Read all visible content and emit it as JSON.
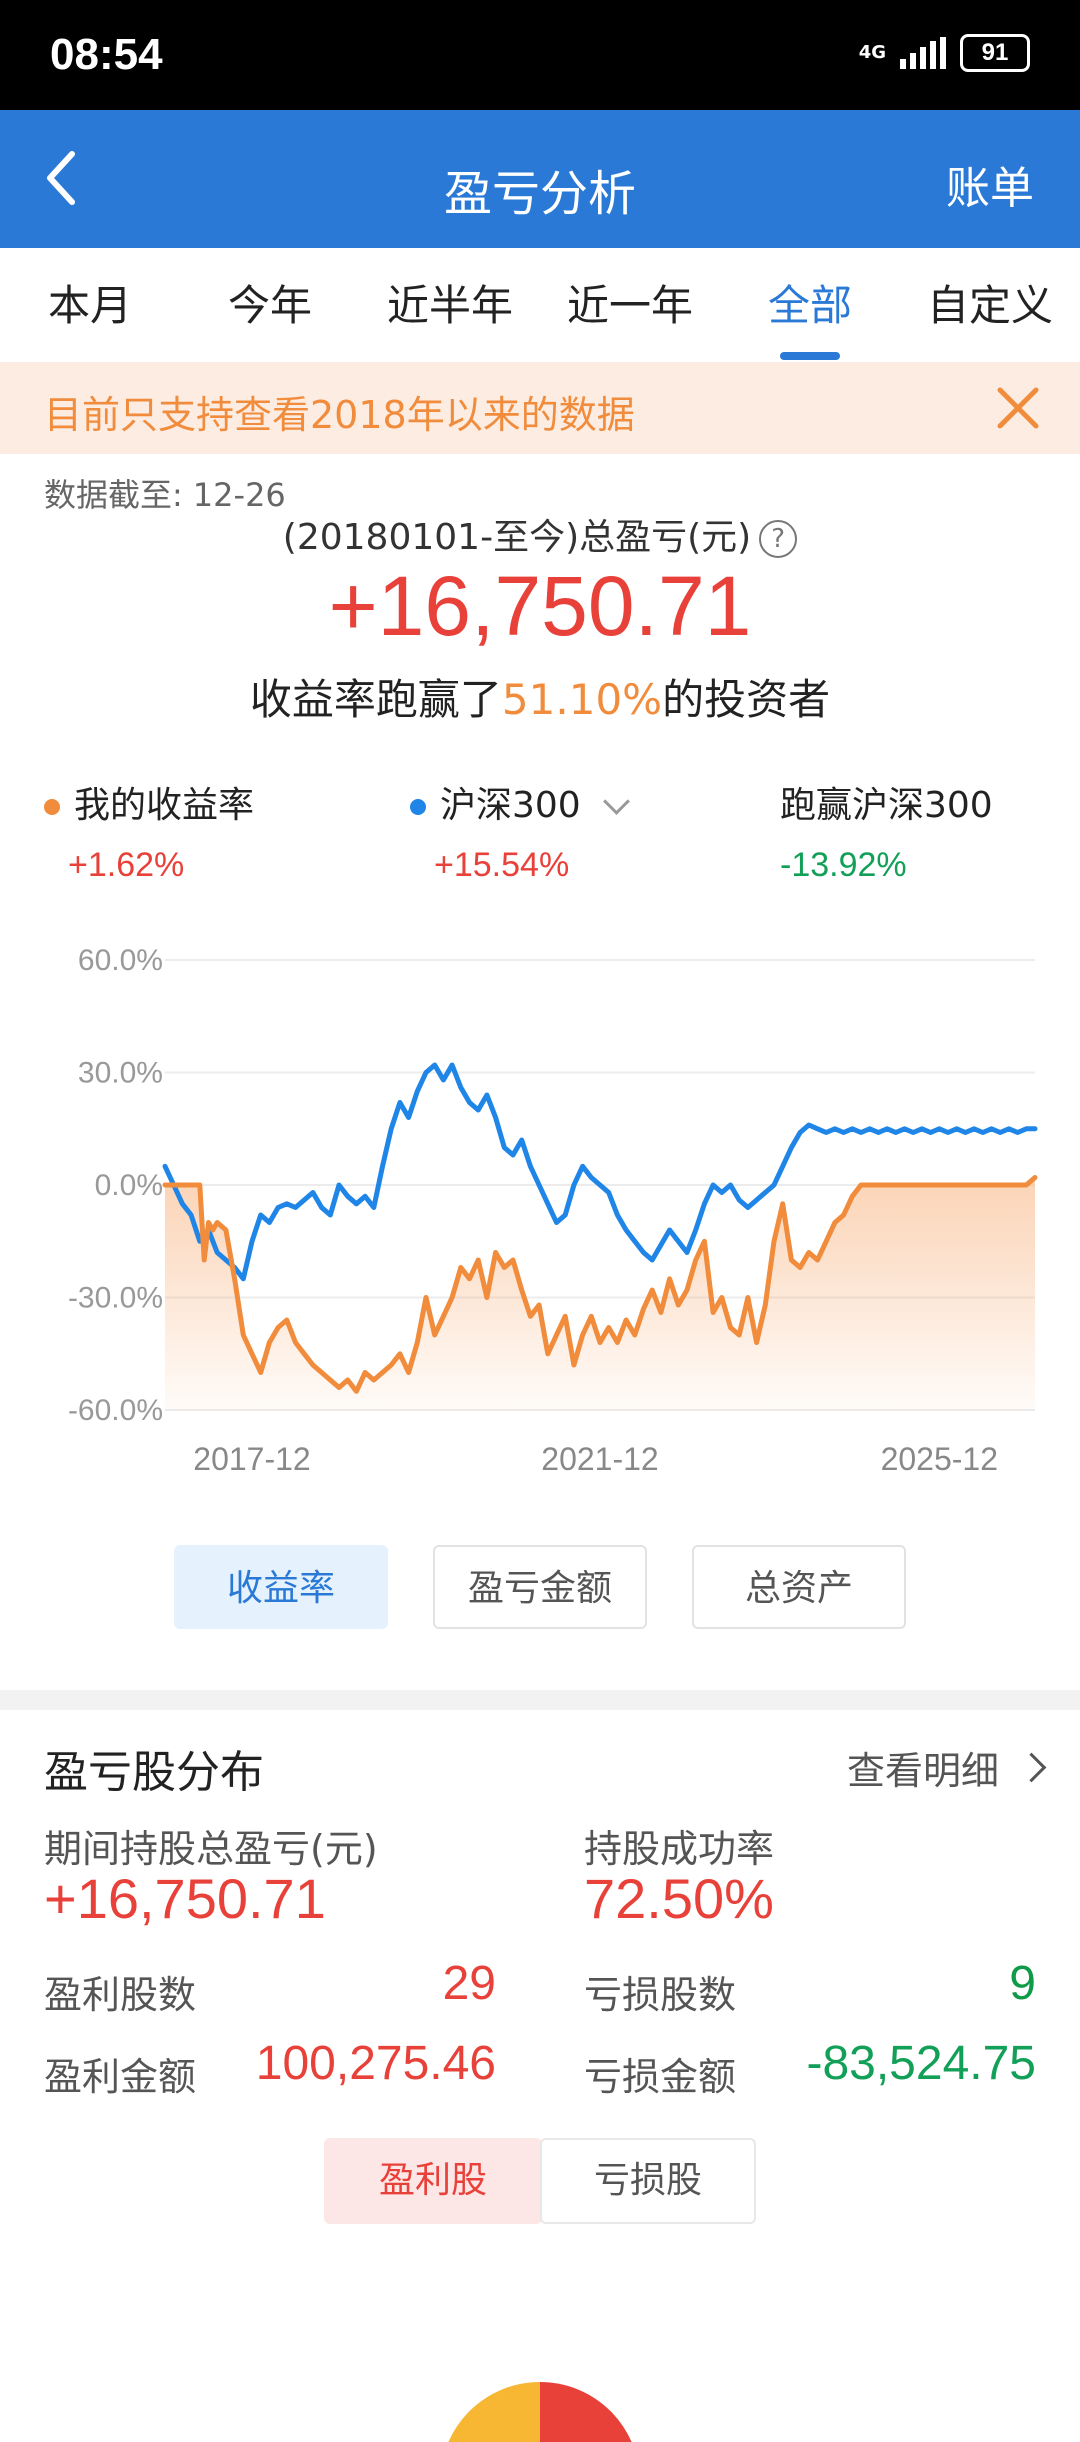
{
  "status_bar": {
    "time": "08:54",
    "network": "4G",
    "battery": "91"
  },
  "header": {
    "title": "盈亏分析",
    "action": "账单"
  },
  "tabs": [
    {
      "label": "本月",
      "active": false
    },
    {
      "label": "今年",
      "active": false
    },
    {
      "label": "近半年",
      "active": false
    },
    {
      "label": "近一年",
      "active": false
    },
    {
      "label": "全部",
      "active": true
    },
    {
      "label": "自定义",
      "active": false
    }
  ],
  "notice": {
    "text": "目前只支持查看2018年以来的数据"
  },
  "summary": {
    "as_of_label": "数据截至:",
    "as_of_value": "12-26",
    "total_label": "(20180101-至今)总盈亏(元)",
    "help": "?",
    "total_value": "+16,750.71",
    "beat_prefix": "收益率跑赢了",
    "beat_percent": "51.10%",
    "beat_suffix": "的投资者"
  },
  "legend": [
    {
      "name": "我的收益率",
      "value": "+1.62%",
      "dot_color": "#f08c3c",
      "value_color": "#e8413a"
    },
    {
      "name": "沪深300",
      "value": "+15.54%",
      "dot_color": "#1f86e8",
      "value_color": "#e8413a"
    },
    {
      "name": "跑赢沪深300",
      "value": "-13.92%",
      "value_color": "#12a058"
    }
  ],
  "chart_data": {
    "type": "line",
    "y_ticks": [
      "60.0%",
      "30.0%",
      "0.0%",
      "-30.0%",
      "-60.0%"
    ],
    "x_ticks": [
      "2017-12",
      "2021-12",
      "2025-12"
    ],
    "ylim": [
      -60,
      60
    ],
    "grid": true,
    "series": [
      {
        "name": "我的收益率",
        "color": "#f08c3c",
        "fill": true,
        "x": [
          0,
          0.01,
          0.02,
          0.03,
          0.04,
          0.045,
          0.05,
          0.055,
          0.06,
          0.07,
          0.08,
          0.09,
          0.1,
          0.11,
          0.12,
          0.13,
          0.14,
          0.15,
          0.16,
          0.17,
          0.18,
          0.19,
          0.2,
          0.21,
          0.22,
          0.23,
          0.24,
          0.25,
          0.26,
          0.27,
          0.28,
          0.29,
          0.3,
          0.31,
          0.32,
          0.33,
          0.34,
          0.35,
          0.36,
          0.37,
          0.38,
          0.39,
          0.4,
          0.41,
          0.42,
          0.43,
          0.44,
          0.45,
          0.46,
          0.47,
          0.48,
          0.49,
          0.5,
          0.51,
          0.52,
          0.53,
          0.54,
          0.55,
          0.56,
          0.57,
          0.58,
          0.59,
          0.6,
          0.61,
          0.62,
          0.63,
          0.64,
          0.65,
          0.66,
          0.67,
          0.68,
          0.69,
          0.7,
          0.71,
          0.72,
          0.73,
          0.74,
          0.75,
          0.76,
          0.77,
          0.78,
          0.79,
          0.8,
          0.81,
          0.82,
          0.83,
          0.84,
          0.85,
          0.86,
          0.87,
          0.88,
          0.89,
          0.9,
          0.91,
          0.92,
          0.93,
          0.94,
          0.95,
          0.96,
          0.97,
          0.98,
          0.99,
          1
        ],
        "values": [
          0,
          0,
          0,
          0,
          0,
          -20,
          -10,
          -12,
          -10,
          -12,
          -25,
          -40,
          -45,
          -50,
          -42,
          -38,
          -36,
          -42,
          -45,
          -48,
          -50,
          -52,
          -54,
          -52,
          -55,
          -50,
          -52,
          -50,
          -48,
          -45,
          -50,
          -42,
          -30,
          -40,
          -35,
          -30,
          -22,
          -25,
          -20,
          -30,
          -18,
          -22,
          -20,
          -28,
          -35,
          -32,
          -45,
          -40,
          -35,
          -48,
          -40,
          -35,
          -42,
          -38,
          -42,
          -36,
          -40,
          -33,
          -28,
          -34,
          -25,
          -32,
          -28,
          -20,
          -15,
          -34,
          -30,
          -38,
          -40,
          -30,
          -42,
          -32,
          -15,
          -5,
          -20,
          -22,
          -18,
          -20,
          -15,
          -10,
          -8,
          -3,
          0,
          0,
          0,
          0,
          0,
          0,
          0,
          0,
          0,
          0,
          0,
          0,
          0,
          0,
          0,
          0,
          0,
          0,
          0,
          0,
          2
        ],
        "note_values_shape": "approximate"
      },
      {
        "name": "沪深300",
        "color": "#1f86e8",
        "fill": false,
        "x": [
          0,
          0.01,
          0.02,
          0.03,
          0.04,
          0.05,
          0.06,
          0.07,
          0.08,
          0.09,
          0.1,
          0.11,
          0.12,
          0.13,
          0.14,
          0.15,
          0.16,
          0.17,
          0.18,
          0.19,
          0.2,
          0.21,
          0.22,
          0.23,
          0.24,
          0.25,
          0.26,
          0.27,
          0.28,
          0.29,
          0.3,
          0.31,
          0.32,
          0.33,
          0.34,
          0.35,
          0.36,
          0.37,
          0.38,
          0.39,
          0.4,
          0.41,
          0.42,
          0.43,
          0.44,
          0.45,
          0.46,
          0.47,
          0.48,
          0.49,
          0.5,
          0.51,
          0.52,
          0.53,
          0.54,
          0.55,
          0.56,
          0.57,
          0.58,
          0.59,
          0.6,
          0.61,
          0.62,
          0.63,
          0.64,
          0.65,
          0.66,
          0.67,
          0.68,
          0.69,
          0.7,
          0.71,
          0.72,
          0.73,
          0.74,
          0.75,
          0.76,
          0.77,
          0.78,
          0.79,
          0.8,
          0.81,
          0.82,
          0.83,
          0.84,
          0.85,
          0.86,
          0.87,
          0.88,
          0.89,
          0.9,
          0.91,
          0.92,
          0.93,
          0.94,
          0.95,
          0.96,
          0.97,
          0.98,
          0.99,
          1
        ],
        "values": [
          5,
          0,
          -5,
          -8,
          -15,
          -12,
          -18,
          -20,
          -22,
          -25,
          -15,
          -8,
          -10,
          -6,
          -5,
          -6,
          -4,
          -2,
          -6,
          -8,
          0,
          -3,
          -5,
          -3,
          -6,
          5,
          15,
          22,
          18,
          25,
          30,
          32,
          28,
          32,
          26,
          22,
          20,
          24,
          18,
          10,
          8,
          12,
          5,
          0,
          -5,
          -10,
          -8,
          0,
          5,
          2,
          0,
          -2,
          -8,
          -12,
          -15,
          -18,
          -20,
          -16,
          -12,
          -15,
          -18,
          -12,
          -5,
          0,
          -2,
          0,
          -4,
          -6,
          -4,
          -2,
          0,
          5,
          10,
          14,
          16,
          15,
          14,
          15,
          14,
          15,
          14,
          15,
          14,
          15,
          14,
          15,
          14,
          15,
          14,
          15,
          14,
          15,
          14,
          15,
          14,
          15,
          14,
          15,
          14,
          15,
          15
        ],
        "note_values_shape": "approximate"
      }
    ]
  },
  "chart_toggles": [
    {
      "label": "收益率",
      "active": true
    },
    {
      "label": "盈亏金额",
      "active": false
    },
    {
      "label": "总资产",
      "active": false
    }
  ],
  "distribution": {
    "title": "盈亏股分布",
    "detail_link": "查看明细",
    "period_total_label": "期间持股总盈亏(元)",
    "period_total_value": "+16,750.71",
    "success_rate_label": "持股成功率",
    "success_rate_value": "72.50%",
    "profit_count_label": "盈利股数",
    "profit_count_value": "29",
    "loss_count_label": "亏损股数",
    "loss_count_value": "9",
    "profit_amount_label": "盈利金额",
    "profit_amount_value": "100,275.46",
    "loss_amount_label": "亏损金额",
    "loss_amount_value": "-83,524.75",
    "toggle_profit": "盈利股",
    "toggle_loss": "亏损股"
  }
}
